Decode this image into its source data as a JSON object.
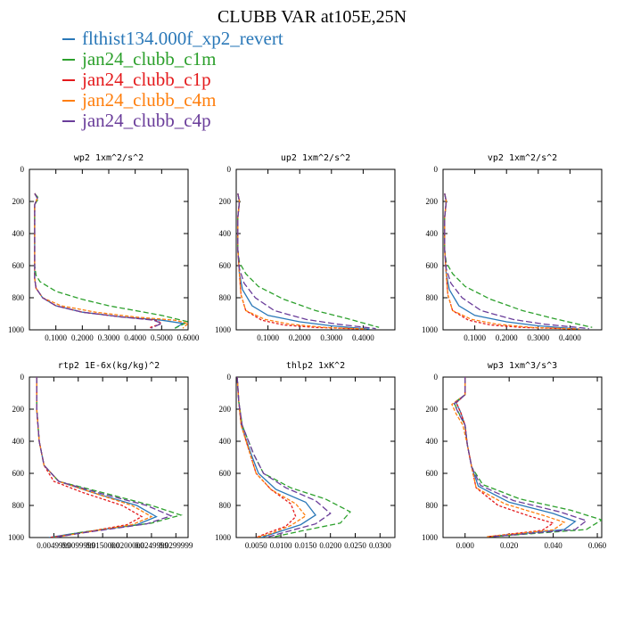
{
  "title": "CLUBB VAR at105E,25N",
  "legend": [
    {
      "label": "flthist134.000f_xp2_revert",
      "color": "#2a78b8"
    },
    {
      "label": "jan24_clubb_c1m",
      "color": "#2ca02c"
    },
    {
      "label": "jan24_clubb_c1p",
      "color": "#e41a1c"
    },
    {
      "label": "jan24_clubb_c4m",
      "color": "#ff7f0e"
    },
    {
      "label": "jan24_clubb_c4p",
      "color": "#6a3d9a"
    }
  ],
  "chart_data": [
    {
      "type": "line",
      "title": "wp2   1xm^2/s^2",
      "xlim": [
        0,
        0.6
      ],
      "ylim": [
        1000,
        0
      ],
      "xticks": [
        0.1,
        0.2,
        0.3,
        0.4,
        0.5,
        0.6
      ],
      "xtick_labels": [
        "0.1000",
        "0.2000",
        "0.3000",
        "0.4000",
        "0.5000",
        "0.6000"
      ],
      "yticks": [
        0,
        200,
        400,
        600,
        800,
        1000
      ],
      "ytick_labels": [
        "0",
        "200",
        "400",
        "600",
        "800",
        "1000"
      ],
      "series": [
        {
          "x": [
            0.02,
            0.03,
            0.02,
            0.02,
            0.02,
            0.02,
            0.025,
            0.05,
            0.1,
            0.2,
            0.35,
            0.5,
            0.58,
            0.55
          ],
          "y": [
            150,
            180,
            220,
            400,
            600,
            680,
            740,
            800,
            850,
            890,
            920,
            940,
            960,
            990
          ]
        },
        {
          "x": [
            0.02,
            0.035,
            0.02,
            0.02,
            0.02,
            0.025,
            0.04,
            0.1,
            0.2,
            0.3,
            0.4,
            0.5,
            0.6,
            0.55
          ],
          "y": [
            150,
            180,
            220,
            400,
            600,
            660,
            700,
            760,
            810,
            850,
            880,
            910,
            950,
            990
          ]
        },
        {
          "x": [
            0.02,
            0.03,
            0.02,
            0.02,
            0.02,
            0.02,
            0.025,
            0.05,
            0.1,
            0.2,
            0.35,
            0.48,
            0.5,
            0.45
          ],
          "y": [
            150,
            180,
            220,
            400,
            600,
            680,
            740,
            800,
            850,
            890,
            920,
            940,
            960,
            990
          ]
        },
        {
          "x": [
            0.02,
            0.03,
            0.02,
            0.02,
            0.02,
            0.02,
            0.025,
            0.05,
            0.12,
            0.25,
            0.4,
            0.55,
            0.6,
            0.58
          ],
          "y": [
            150,
            180,
            220,
            400,
            600,
            680,
            740,
            800,
            850,
            890,
            920,
            940,
            960,
            990
          ]
        },
        {
          "x": [
            0.02,
            0.03,
            0.02,
            0.02,
            0.02,
            0.02,
            0.025,
            0.05,
            0.1,
            0.2,
            0.35,
            0.47,
            0.5,
            0.46
          ],
          "y": [
            150,
            180,
            220,
            400,
            600,
            680,
            740,
            800,
            850,
            890,
            920,
            940,
            960,
            990
          ]
        }
      ]
    },
    {
      "type": "line",
      "title": "up2   1xm^2/s^2",
      "xlim": [
        0,
        0.5
      ],
      "ylim": [
        1000,
        0
      ],
      "xticks": [
        0.1,
        0.2,
        0.3,
        0.4
      ],
      "xtick_labels": [
        "0.1000",
        "0.2000",
        "0.3000",
        "0.4000"
      ],
      "yticks": [
        0,
        200,
        400,
        600,
        800,
        1000
      ],
      "ytick_labels": [
        "0",
        "200",
        "400",
        "600",
        "800",
        "1000"
      ],
      "series": [
        {
          "x": [
            0.005,
            0.01,
            0.005,
            0.005,
            0.01,
            0.02,
            0.05,
            0.1,
            0.2,
            0.3,
            0.42
          ],
          "y": [
            150,
            200,
            300,
            500,
            650,
            750,
            850,
            910,
            950,
            975,
            995
          ]
        },
        {
          "x": [
            0.005,
            0.01,
            0.005,
            0.005,
            0.01,
            0.03,
            0.07,
            0.15,
            0.25,
            0.35,
            0.45
          ],
          "y": [
            150,
            200,
            300,
            500,
            580,
            650,
            730,
            810,
            880,
            930,
            985
          ]
        },
        {
          "x": [
            0.005,
            0.01,
            0.005,
            0.005,
            0.01,
            0.015,
            0.03,
            0.08,
            0.15,
            0.25,
            0.4
          ],
          "y": [
            150,
            200,
            300,
            500,
            650,
            780,
            880,
            940,
            970,
            985,
            995
          ]
        },
        {
          "x": [
            0.005,
            0.01,
            0.005,
            0.005,
            0.01,
            0.015,
            0.03,
            0.09,
            0.17,
            0.28,
            0.41
          ],
          "y": [
            150,
            200,
            300,
            500,
            650,
            780,
            880,
            935,
            965,
            985,
            995
          ]
        },
        {
          "x": [
            0.005,
            0.01,
            0.005,
            0.005,
            0.01,
            0.025,
            0.06,
            0.12,
            0.22,
            0.32,
            0.44
          ],
          "y": [
            150,
            200,
            300,
            500,
            620,
            710,
            800,
            880,
            935,
            965,
            992
          ]
        }
      ]
    },
    {
      "type": "line",
      "title": "vp2   1xm^2/s^2",
      "xlim": [
        0,
        0.5
      ],
      "ylim": [
        1000,
        0
      ],
      "xticks": [
        0.1,
        0.2,
        0.3,
        0.4
      ],
      "xtick_labels": [
        "0.1000",
        "0.2000",
        "0.3000",
        "0.4000"
      ],
      "yticks": [
        0,
        200,
        400,
        600,
        800,
        1000
      ],
      "ytick_labels": [
        "0",
        "200",
        "400",
        "600",
        "800",
        "1000"
      ],
      "series": [
        {
          "x": [
            0.005,
            0.01,
            0.005,
            0.005,
            0.01,
            0.02,
            0.05,
            0.1,
            0.2,
            0.3,
            0.43
          ],
          "y": [
            150,
            200,
            300,
            500,
            650,
            750,
            850,
            910,
            950,
            975,
            995
          ]
        },
        {
          "x": [
            0.005,
            0.01,
            0.005,
            0.005,
            0.01,
            0.03,
            0.07,
            0.15,
            0.25,
            0.35,
            0.47
          ],
          "y": [
            150,
            200,
            300,
            500,
            580,
            650,
            730,
            810,
            880,
            930,
            985
          ]
        },
        {
          "x": [
            0.005,
            0.01,
            0.005,
            0.005,
            0.01,
            0.015,
            0.03,
            0.08,
            0.15,
            0.25,
            0.42
          ],
          "y": [
            150,
            200,
            300,
            500,
            650,
            780,
            880,
            940,
            970,
            985,
            995
          ]
        },
        {
          "x": [
            0.005,
            0.01,
            0.005,
            0.005,
            0.01,
            0.015,
            0.03,
            0.09,
            0.17,
            0.28,
            0.43
          ],
          "y": [
            150,
            200,
            300,
            500,
            650,
            780,
            880,
            935,
            965,
            985,
            995
          ]
        },
        {
          "x": [
            0.005,
            0.01,
            0.005,
            0.005,
            0.01,
            0.025,
            0.06,
            0.12,
            0.22,
            0.32,
            0.46
          ],
          "y": [
            150,
            200,
            300,
            500,
            620,
            710,
            800,
            880,
            935,
            965,
            992
          ]
        }
      ]
    },
    {
      "type": "line",
      "title": "rtp2   1E-6x(kg/kg)^2",
      "xlim": [
        0,
        0.0325
      ],
      "ylim": [
        1000,
        0
      ],
      "xticks": [
        0.005,
        0.01,
        0.015,
        0.02,
        0.025,
        0.03
      ],
      "xtick_labels": [
        "0.0049999",
        "0.0099999",
        "0.0150000",
        "0.0200000",
        "0.0249999",
        "0.0299999"
      ],
      "yticks": [
        0,
        200,
        400,
        600,
        800,
        1000
      ],
      "ytick_labels": [
        "0",
        "200",
        "400",
        "600",
        "800",
        "1000"
      ],
      "series": [
        {
          "x": [
            0.0015,
            0.0015,
            0.002,
            0.003,
            0.006,
            0.013,
            0.022,
            0.026,
            0.022,
            0.008,
            0.004
          ],
          "y": [
            0,
            200,
            400,
            550,
            650,
            720,
            800,
            870,
            920,
            980,
            1000
          ]
        },
        {
          "x": [
            0.0015,
            0.0015,
            0.002,
            0.003,
            0.006,
            0.015,
            0.025,
            0.031,
            0.025,
            0.01,
            0.005
          ],
          "y": [
            0,
            200,
            400,
            550,
            650,
            720,
            800,
            860,
            910,
            970,
            1000
          ]
        },
        {
          "x": [
            0.0015,
            0.0015,
            0.002,
            0.003,
            0.005,
            0.011,
            0.019,
            0.023,
            0.02,
            0.009,
            0.004
          ],
          "y": [
            0,
            200,
            400,
            550,
            650,
            720,
            800,
            870,
            920,
            980,
            1000
          ]
        },
        {
          "x": [
            0.0015,
            0.0015,
            0.002,
            0.003,
            0.006,
            0.013,
            0.021,
            0.025,
            0.021,
            0.009,
            0.005
          ],
          "y": [
            0,
            200,
            400,
            550,
            650,
            720,
            800,
            870,
            920,
            980,
            1000
          ]
        },
        {
          "x": [
            0.0015,
            0.0015,
            0.002,
            0.003,
            0.006,
            0.014,
            0.024,
            0.029,
            0.024,
            0.01,
            0.005
          ],
          "y": [
            0,
            200,
            400,
            550,
            650,
            720,
            800,
            865,
            915,
            975,
            1000
          ]
        }
      ]
    },
    {
      "type": "line",
      "title": "thlp2   1xK^2",
      "xlim": [
        0.001,
        0.033
      ],
      "ylim": [
        1000,
        0
      ],
      "xticks": [
        0.005,
        0.01,
        0.015,
        0.02,
        0.025,
        0.03
      ],
      "xtick_labels": [
        "0.0050",
        "0.0100",
        "0.0150",
        "0.0200",
        "0.0250",
        "0.0300"
      ],
      "yticks": [
        0,
        200,
        400,
        600,
        800,
        1000
      ],
      "ytick_labels": [
        "0",
        "200",
        "400",
        "600",
        "800",
        "1000"
      ],
      "series": [
        {
          "x": [
            0.0012,
            0.0015,
            0.002,
            0.004,
            0.0055,
            0.009,
            0.015,
            0.017,
            0.014,
            0.009,
            0.006
          ],
          "y": [
            0,
            150,
            300,
            480,
            600,
            700,
            780,
            860,
            920,
            970,
            1000
          ]
        },
        {
          "x": [
            0.0012,
            0.0015,
            0.0022,
            0.0045,
            0.0065,
            0.012,
            0.019,
            0.024,
            0.022,
            0.014,
            0.008
          ],
          "y": [
            0,
            150,
            300,
            480,
            600,
            690,
            760,
            840,
            910,
            960,
            1000
          ]
        },
        {
          "x": [
            0.0012,
            0.0015,
            0.002,
            0.0038,
            0.005,
            0.008,
            0.012,
            0.013,
            0.011,
            0.007,
            0.005
          ],
          "y": [
            0,
            150,
            300,
            480,
            600,
            700,
            790,
            870,
            930,
            975,
            1000
          ]
        },
        {
          "x": [
            0.0012,
            0.0015,
            0.002,
            0.0038,
            0.005,
            0.008,
            0.013,
            0.015,
            0.012,
            0.008,
            0.005
          ],
          "y": [
            0,
            150,
            300,
            480,
            600,
            700,
            790,
            865,
            925,
            975,
            1000
          ]
        },
        {
          "x": [
            0.0012,
            0.0015,
            0.0022,
            0.0045,
            0.0065,
            0.011,
            0.017,
            0.02,
            0.017,
            0.011,
            0.007
          ],
          "y": [
            0,
            150,
            300,
            480,
            600,
            690,
            770,
            850,
            915,
            965,
            1000
          ]
        }
      ]
    },
    {
      "type": "line",
      "title": "wp3   1xm^3/s^3",
      "xlim": [
        -0.01,
        0.062
      ],
      "ylim": [
        1000,
        0
      ],
      "xticks": [
        0,
        0.02,
        0.04,
        0.06
      ],
      "xtick_labels": [
        "0.000",
        "0.020",
        "0.040",
        "0.060"
      ],
      "yticks": [
        0,
        200,
        400,
        600,
        800,
        1000
      ],
      "ytick_labels": [
        "0",
        "200",
        "400",
        "600",
        "800",
        "1000"
      ],
      "series": [
        {
          "x": [
            0,
            0,
            -0.004,
            -0.002,
            0,
            0.001,
            0.003,
            0.006,
            0.02,
            0.04,
            0.05,
            0.045,
            0.01
          ],
          "y": [
            0,
            110,
            160,
            220,
            300,
            420,
            560,
            680,
            780,
            850,
            900,
            950,
            995
          ]
        },
        {
          "x": [
            0,
            0,
            -0.005,
            -0.003,
            0,
            0.001,
            0.003,
            0.008,
            0.025,
            0.048,
            0.062,
            0.055,
            0.012
          ],
          "y": [
            0,
            110,
            160,
            220,
            300,
            420,
            560,
            670,
            760,
            830,
            890,
            950,
            995
          ]
        },
        {
          "x": [
            0,
            0,
            -0.004,
            -0.002,
            0,
            0.001,
            0.003,
            0.005,
            0.015,
            0.03,
            0.04,
            0.035,
            0.01
          ],
          "y": [
            0,
            110,
            160,
            220,
            300,
            420,
            560,
            690,
            800,
            870,
            910,
            955,
            995
          ]
        },
        {
          "x": [
            0,
            0,
            -0.006,
            -0.004,
            -0.001,
            0.001,
            0.003,
            0.005,
            0.018,
            0.035,
            0.045,
            0.04,
            0.01
          ],
          "y": [
            0,
            110,
            170,
            230,
            300,
            420,
            560,
            690,
            790,
            860,
            905,
            952,
            995
          ]
        },
        {
          "x": [
            0,
            0,
            -0.005,
            -0.003,
            0,
            0.001,
            0.003,
            0.007,
            0.022,
            0.043,
            0.055,
            0.05,
            0.012
          ],
          "y": [
            0,
            110,
            165,
            225,
            300,
            420,
            560,
            675,
            770,
            840,
            895,
            950,
            995
          ]
        }
      ]
    }
  ]
}
